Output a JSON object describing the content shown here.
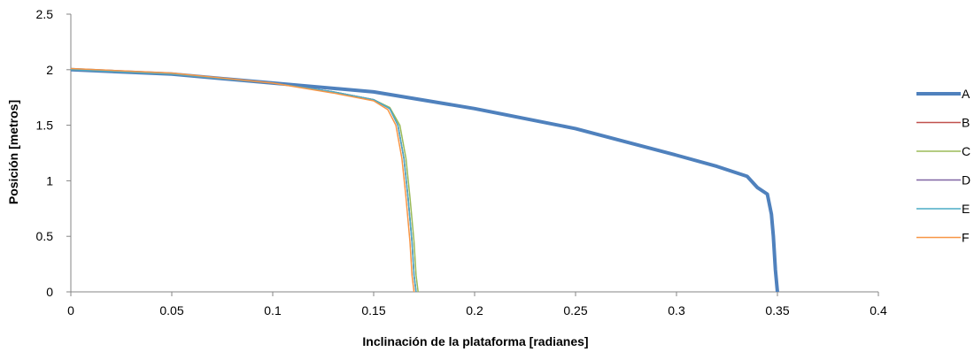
{
  "chart_data": {
    "type": "line",
    "title": "",
    "xlabel": "Inclinación de la plataforma [radianes]",
    "ylabel": "Posición [metros]",
    "xlim": [
      0,
      0.4
    ],
    "ylim": [
      0,
      2.5
    ],
    "xticks": [
      "0",
      "0.05",
      "0.1",
      "0.15",
      "0.2",
      "0.25",
      "0.3",
      "0.35",
      "0.4"
    ],
    "yticks": [
      "0",
      "0.5",
      "1",
      "1.5",
      "2",
      "2.5"
    ],
    "grid": false,
    "legend_position": "right",
    "series": [
      {
        "name": "A",
        "color": "#4F81BD",
        "points": [
          [
            0,
            2.0
          ],
          [
            0.05,
            1.96
          ],
          [
            0.1,
            1.88
          ],
          [
            0.15,
            1.8
          ],
          [
            0.2,
            1.65
          ],
          [
            0.25,
            1.47
          ],
          [
            0.3,
            1.23
          ],
          [
            0.32,
            1.13
          ],
          [
            0.335,
            1.04
          ],
          [
            0.34,
            0.94
          ],
          [
            0.345,
            0.88
          ],
          [
            0.347,
            0.7
          ],
          [
            0.348,
            0.5
          ],
          [
            0.349,
            0.2
          ],
          [
            0.35,
            0.0
          ]
        ]
      },
      {
        "name": "B",
        "color": "#C0504D",
        "points": [
          [
            0,
            2.0
          ],
          [
            0.05,
            1.96
          ],
          [
            0.1,
            1.88
          ],
          [
            0.13,
            1.8
          ],
          [
            0.15,
            1.73
          ],
          [
            0.158,
            1.65
          ],
          [
            0.162,
            1.5
          ],
          [
            0.165,
            1.2
          ],
          [
            0.167,
            0.85
          ],
          [
            0.169,
            0.45
          ],
          [
            0.17,
            0.15
          ],
          [
            0.171,
            0.0
          ]
        ]
      },
      {
        "name": "C",
        "color": "#9BBB59",
        "points": [
          [
            0,
            2.0
          ],
          [
            0.05,
            1.96
          ],
          [
            0.1,
            1.88
          ],
          [
            0.13,
            1.8
          ],
          [
            0.15,
            1.73
          ],
          [
            0.158,
            1.66
          ],
          [
            0.163,
            1.5
          ],
          [
            0.166,
            1.2
          ],
          [
            0.168,
            0.85
          ],
          [
            0.17,
            0.45
          ],
          [
            0.171,
            0.15
          ],
          [
            0.172,
            0.0
          ]
        ]
      },
      {
        "name": "D",
        "color": "#8064A2",
        "points": [
          [
            0,
            2.0
          ],
          [
            0.05,
            1.96
          ],
          [
            0.1,
            1.88
          ],
          [
            0.13,
            1.8
          ],
          [
            0.15,
            1.73
          ],
          [
            0.158,
            1.65
          ],
          [
            0.162,
            1.5
          ],
          [
            0.165,
            1.2
          ],
          [
            0.167,
            0.85
          ],
          [
            0.169,
            0.45
          ],
          [
            0.17,
            0.15
          ],
          [
            0.171,
            0.0
          ]
        ]
      },
      {
        "name": "E",
        "color": "#4BACC6",
        "points": [
          [
            0,
            2.0
          ],
          [
            0.05,
            1.96
          ],
          [
            0.1,
            1.88
          ],
          [
            0.13,
            1.8
          ],
          [
            0.15,
            1.73
          ],
          [
            0.158,
            1.65
          ],
          [
            0.162,
            1.5
          ],
          [
            0.165,
            1.2
          ],
          [
            0.167,
            0.85
          ],
          [
            0.169,
            0.45
          ],
          [
            0.17,
            0.15
          ],
          [
            0.171,
            0.0
          ]
        ]
      },
      {
        "name": "F",
        "color": "#F79646",
        "points": [
          [
            0,
            2.01
          ],
          [
            0.05,
            1.97
          ],
          [
            0.1,
            1.88
          ],
          [
            0.13,
            1.79
          ],
          [
            0.15,
            1.72
          ],
          [
            0.157,
            1.64
          ],
          [
            0.161,
            1.5
          ],
          [
            0.164,
            1.2
          ],
          [
            0.166,
            0.85
          ],
          [
            0.168,
            0.45
          ],
          [
            0.169,
            0.15
          ],
          [
            0.17,
            0.0
          ]
        ]
      }
    ]
  }
}
